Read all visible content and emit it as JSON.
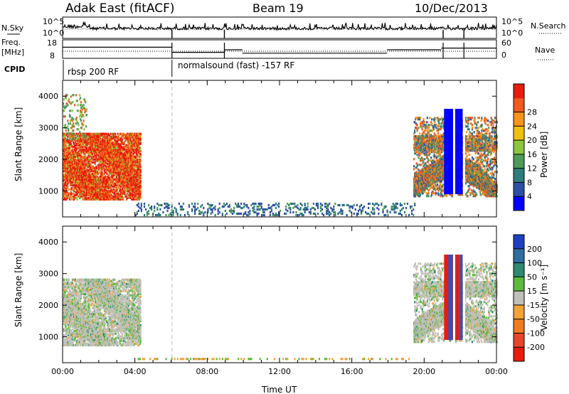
{
  "header": {
    "station": "Adak East (fitACF)",
    "beam": "Beam 19",
    "date": "10/Dec/2013"
  },
  "params": {
    "left_top_label": "N.Sky",
    "left_mid_label_1": "Freq.",
    "left_mid_label_2": "[MHz]",
    "cpid_label": "CPID",
    "right_top_label": "N.Search",
    "right_mid_label": "Nave",
    "nsky_ticks": [
      "10^5",
      "10^0"
    ],
    "freq_ticks": [
      "18",
      "8"
    ],
    "nsearch_ticks": [
      "10^5",
      "10^0"
    ],
    "nave_ticks": [
      "60",
      "0"
    ],
    "cpid_segments": [
      {
        "label": "rbsp 200 RF",
        "start_hour": 0
      },
      {
        "label": "normalsound (fast) -157 RF",
        "start_hour": 6.05
      }
    ],
    "freq_steps": [
      {
        "from": 0.0,
        "to": 6.05,
        "value": 14.5
      },
      {
        "from": 6.05,
        "to": 8.95,
        "value": 11.5
      },
      {
        "from": 8.95,
        "to": 9.95,
        "value": 13.0
      },
      {
        "from": 9.95,
        "to": 17.95,
        "value": 11.0
      },
      {
        "from": 17.95,
        "to": 20.95,
        "value": 13.0
      },
      {
        "from": 20.95,
        "to": 24.0,
        "value": 14.0
      }
    ],
    "gaps_hours": [
      6.05,
      8.95,
      21.05,
      22.2
    ]
  },
  "chart_data": [
    {
      "type": "heatmap",
      "name": "power",
      "ylabel": "Slant Range [km]",
      "xlabel": "",
      "yticks": [
        1000,
        2000,
        3000,
        4000
      ],
      "ylim": [
        180,
        4500
      ],
      "xlim_hours": [
        0,
        24
      ],
      "colorbar": {
        "label": "Power [dB]",
        "ticks": [
          4,
          8,
          12,
          16,
          20,
          24,
          28
        ],
        "range": [
          0,
          32
        ],
        "colors": [
          "#0000ff",
          "#2c4fa6",
          "#2e7d7a",
          "#4d9a5a",
          "#8cc63f",
          "#f0c010",
          "#f7941d",
          "#f05a1a",
          "#e81c0c"
        ]
      },
      "echo_regions": [
        {
          "t0": 0.0,
          "t1": 4.3,
          "r0": 700,
          "r1": 2800,
          "level": "high"
        },
        {
          "t0": 0.0,
          "t1": 1.3,
          "r0": 2600,
          "r1": 4000,
          "level": "scattered"
        },
        {
          "t0": 19.4,
          "t1": 24.0,
          "r0": 800,
          "r1": 3300,
          "level": "mixed"
        },
        {
          "t0": 4.0,
          "t1": 19.5,
          "r0": 200,
          "r1": 600,
          "level": "low"
        }
      ],
      "noise_band": {
        "t0": 21.1,
        "t1": 22.1,
        "r0": 900,
        "r1": 3600
      }
    },
    {
      "type": "heatmap",
      "name": "velocity",
      "ylabel": "Slant Range [km]",
      "xlabel": "Time UT",
      "yticks": [
        1000,
        2000,
        3000,
        4000
      ],
      "ylim": [
        180,
        4500
      ],
      "xticks": [
        "00:00",
        "04:00",
        "08:00",
        "12:00",
        "16:00",
        "20:00",
        "00:00"
      ],
      "xlim_hours": [
        0,
        24
      ],
      "colorbar": {
        "label": "Velocity [m s⁻¹]",
        "ticks": [
          "200",
          "100",
          "50",
          "15",
          "-15",
          "-50",
          "-100",
          "-200"
        ],
        "range": [
          -250,
          250
        ],
        "colors": [
          "#2040c0",
          "#2f6d9f",
          "#2f8a6f",
          "#5cba3c",
          "#c0c0b8",
          "#f4a23a",
          "#f07c20",
          "#e8462a",
          "#e81c0c"
        ]
      },
      "echo_regions": [
        {
          "t0": 0.0,
          "t1": 4.3,
          "r0": 700,
          "r1": 2800,
          "level": "low_velocity"
        },
        {
          "t0": 19.4,
          "t1": 24.0,
          "r0": 800,
          "r1": 3300,
          "level": "low_velocity"
        }
      ],
      "noise_band": {
        "t0": 21.1,
        "t1": 22.1,
        "r0": 900,
        "r1": 3600
      }
    }
  ]
}
